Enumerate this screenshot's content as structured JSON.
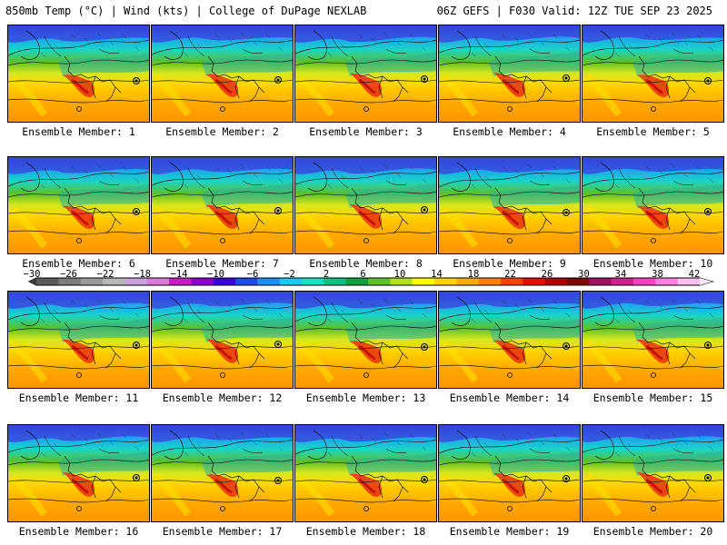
{
  "header": {
    "left": "850mb Temp (°C) | Wind (kts) | College of DuPage NEXLAB",
    "right": "06Z GEFS | F030 Valid: 12Z TUE SEP 23 2025"
  },
  "panels": [
    {
      "label": "Ensemble Member: 1"
    },
    {
      "label": "Ensemble Member: 2"
    },
    {
      "label": "Ensemble Member: 3"
    },
    {
      "label": "Ensemble Member: 4"
    },
    {
      "label": "Ensemble Member: 5"
    },
    {
      "label": "Ensemble Member: 6"
    },
    {
      "label": "Ensemble Member: 7"
    },
    {
      "label": "Ensemble Member: 8"
    },
    {
      "label": "Ensemble Member: 9"
    },
    {
      "label": "Ensemble Member: 10"
    },
    {
      "label": "Ensemble Member: 11"
    },
    {
      "label": "Ensemble Member: 12"
    },
    {
      "label": "Ensemble Member: 13"
    },
    {
      "label": "Ensemble Member: 14"
    },
    {
      "label": "Ensemble Member: 15"
    },
    {
      "label": "Ensemble Member: 16"
    },
    {
      "label": "Ensemble Member: 17"
    },
    {
      "label": "Ensemble Member: 18"
    },
    {
      "label": "Ensemble Member: 19"
    },
    {
      "label": "Ensemble Member: 20"
    }
  ],
  "colorbar": {
    "labels": [
      "−30",
      "−26",
      "−22",
      "−18",
      "−14",
      "−10",
      "−6",
      "−2",
      "2",
      "6",
      "10",
      "14",
      "18",
      "22",
      "26",
      "30",
      "34",
      "38",
      "42"
    ],
    "colors": [
      "#5a5a5a",
      "#7d7d7d",
      "#9a9a9a",
      "#b8b8b8",
      "#c9a3d9",
      "#d97ad9",
      "#c61cc6",
      "#8b00c9",
      "#3a00d8",
      "#1f4de8",
      "#1f8ff0",
      "#1fc8f0",
      "#19e0c0",
      "#10c080",
      "#10a040",
      "#5cc02a",
      "#b4e020",
      "#ffff00",
      "#ffd400",
      "#ffaa00",
      "#ff8000",
      "#ff4000",
      "#e01000",
      "#b00000",
      "#800000",
      "#a01060",
      "#d02090",
      "#ff40c0",
      "#ff80e0",
      "#ffc0f0"
    ]
  }
}
